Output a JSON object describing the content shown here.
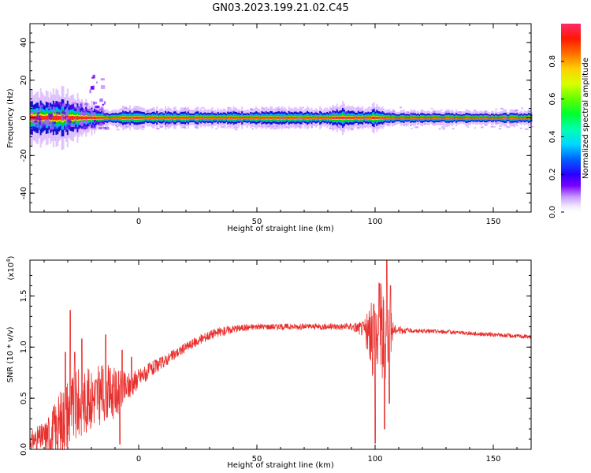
{
  "title": "GN03.2023.199.21.02.C45",
  "colors": {
    "snr_line": "#e8302e",
    "ridge_core": "#ff2020",
    "ridge_mid": "#00dd00",
    "ridge_outer": "#0000cc",
    "ridge_halo": "#b060ff"
  },
  "chart_data": [
    {
      "type": "heatmap",
      "xlabel": "Height of straight line (km)",
      "ylabel": "Frequency (Hz)",
      "xlim": [
        -46,
        166
      ],
      "ylim": [
        -50,
        50
      ],
      "xticks": [
        0,
        50,
        100,
        150
      ],
      "yticks": [
        -40,
        -20,
        0,
        20,
        40
      ],
      "ridge_frequency_hz": 0,
      "ridge_halfwidth_hz": [
        [
          -46,
          6
        ],
        [
          -40,
          5
        ],
        [
          -35,
          6
        ],
        [
          -30,
          5
        ],
        [
          -25,
          4
        ],
        [
          -20,
          3
        ],
        [
          -15,
          2
        ],
        [
          -10,
          1.5
        ],
        [
          -6,
          2.5
        ],
        [
          0,
          2
        ],
        [
          20,
          2
        ],
        [
          40,
          2
        ],
        [
          60,
          2
        ],
        [
          80,
          2
        ],
        [
          86,
          3
        ],
        [
          95,
          2
        ],
        [
          100,
          3
        ],
        [
          105,
          1.5
        ],
        [
          166,
          1.5
        ]
      ],
      "early_scatter_region_km": [
        -46,
        -14
      ],
      "colorbar": {
        "label": "Normalized spectral amplitude",
        "ticks": [
          0.0,
          0.2,
          0.4,
          0.6,
          0.8
        ],
        "range": [
          0,
          1
        ]
      }
    },
    {
      "type": "line",
      "xlabel": "Height of straight line (km)",
      "ylabel": "SNR (10 * v/v)",
      "y_multiplier_label": "(x10",
      "y_multiplier_exp": "4",
      "xlim": [
        -46,
        166
      ],
      "ylim": [
        0,
        1.85
      ],
      "xticks": [
        0,
        50,
        100,
        150
      ],
      "yticks": [
        0.0,
        0.5,
        1.0,
        1.5
      ],
      "series": [
        {
          "envelope_x": [
            -46,
            -40,
            -35,
            -30,
            -25,
            -20,
            -15,
            -10,
            -5,
            0,
            10,
            20,
            30,
            40,
            50,
            60,
            70,
            80,
            90,
            95,
            98,
            100,
            102,
            104,
            106,
            108,
            115,
            130,
            150,
            166
          ],
          "envelope_y": [
            0.08,
            0.12,
            0.2,
            0.35,
            0.45,
            0.5,
            0.55,
            0.55,
            0.6,
            0.7,
            0.85,
            1.0,
            1.12,
            1.18,
            1.2,
            1.2,
            1.2,
            1.2,
            1.2,
            1.18,
            1.1,
            1.1,
            1.15,
            1.1,
            1.15,
            1.17,
            1.16,
            1.15,
            1.12,
            1.1
          ],
          "noise_y": [
            0.1,
            0.15,
            0.3,
            0.4,
            0.35,
            0.3,
            0.3,
            0.25,
            0.15,
            0.1,
            0.06,
            0.05,
            0.05,
            0.04,
            0.03,
            0.03,
            0.03,
            0.03,
            0.04,
            0.08,
            0.3,
            0.5,
            0.6,
            0.5,
            0.3,
            0.05,
            0.02,
            0.02,
            0.02,
            0.02
          ],
          "spikes": [
            [
              -29,
              1.36
            ],
            [
              -31,
              0.95
            ],
            [
              -27,
              0.95
            ],
            [
              -24,
              1.08
            ],
            [
              -14,
              1.12
            ],
            [
              -8,
              0.05
            ],
            [
              -7,
              0.97
            ],
            [
              -3,
              0.9
            ],
            [
              99.5,
              1.42
            ],
            [
              100,
              0.06
            ],
            [
              102,
              1.62
            ],
            [
              104,
              0.2
            ],
            [
              105,
              1.85
            ],
            [
              106,
              0.45
            ],
            [
              106.5,
              1.6
            ]
          ]
        }
      ]
    }
  ]
}
